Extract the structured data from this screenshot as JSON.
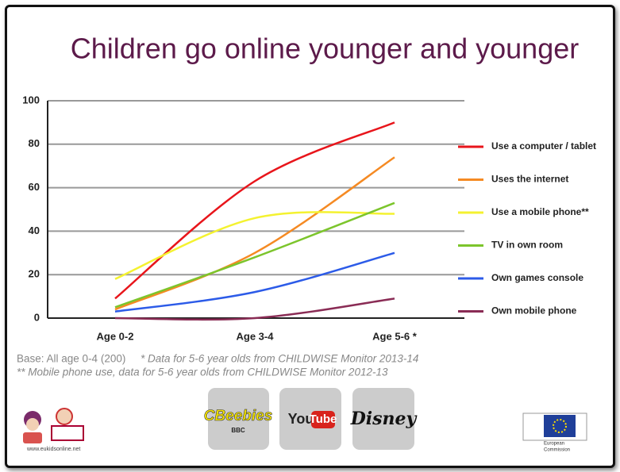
{
  "chart_data": {
    "type": "line",
    "title": "Children go online younger and younger",
    "categories": [
      "Age 0-2",
      "Age 3-4",
      "Age 5-6 *"
    ],
    "series": [
      {
        "name": "Use a computer / tablet",
        "color": "#e8151b",
        "values": [
          9,
          63,
          90
        ]
      },
      {
        "name": "Uses the internet",
        "color": "#f58a23",
        "values": [
          4,
          30,
          74
        ]
      },
      {
        "name": "Use a mobile phone**",
        "color": "#f4f230",
        "values": [
          18,
          46,
          48
        ]
      },
      {
        "name": "TV in own room",
        "color": "#7cc52c",
        "values": [
          5,
          28,
          53
        ]
      },
      {
        "name": "Own games console",
        "color": "#2c5be8",
        "values": [
          3,
          12,
          30
        ]
      },
      {
        "name": "Own mobile phone",
        "color": "#8a2c55",
        "values": [
          0,
          0,
          9
        ]
      }
    ],
    "ylim": [
      0,
      100
    ],
    "yticks": [
      0,
      20,
      40,
      60,
      80,
      100
    ],
    "grid": true,
    "legend": "right"
  },
  "footnotes": {
    "base": "Base: All age 0-4 (200)",
    "note1": "* Data for 5-6 year olds from CHILDWISE Monitor 2013-14",
    "note2": "** Mobile phone use, data for 5-6 year olds from CHILDWISE Monitor 2012-13"
  },
  "logos": {
    "eukids": "www.eukidsonline.net",
    "cbeebies": "CBeebies",
    "bbc": "BBC",
    "youtube_you": "You",
    "youtube_tube": "Tube",
    "disney": "Disney",
    "eu1": "European",
    "eu2": "Commission"
  }
}
